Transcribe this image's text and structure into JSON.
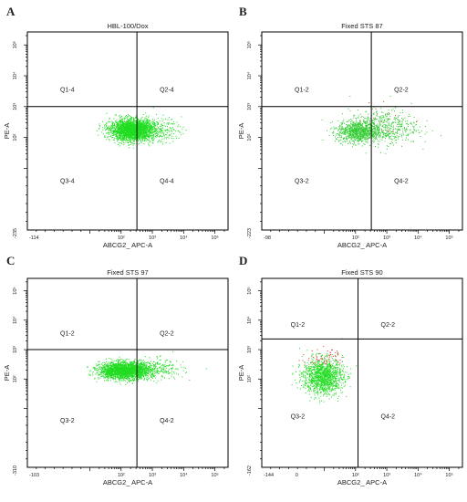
{
  "chart_data": [
    {
      "type": "scatter",
      "panel": "A",
      "title": "HBL-100/Dox",
      "xlabel": "ABCG2_ APC-A",
      "ylabel": "PE-A",
      "x_ticks": [
        "-114",
        "10²",
        "10³",
        "10⁴",
        "10⁵"
      ],
      "y_ticks": [
        "-235",
        "10²",
        "10³",
        "10⁴",
        "10⁵"
      ],
      "quadrants": [
        "Q1-4",
        "Q2-4",
        "Q3-4",
        "Q4-4"
      ],
      "gate": {
        "x": 320,
        "y": 1000
      },
      "xlim": [
        -114,
        262144
      ],
      "ylim": [
        -235,
        262144
      ],
      "x_scale": "biexponential",
      "y_scale": "biexponential",
      "populations": [
        {
          "color": "#22dd22",
          "count": 2600,
          "x_mean": 2.35,
          "x_sd": 0.35,
          "y_mean": 2.25,
          "y_sd": 0.17
        },
        {
          "color": "#22dd22",
          "count": 200,
          "x_mean": 3.2,
          "x_sd": 0.35,
          "y_mean": 2.25,
          "y_sd": 0.2
        }
      ]
    },
    {
      "type": "scatter",
      "panel": "B",
      "title": "Fixed STS 87",
      "xlabel": "ABCG2_ APC-A",
      "ylabel": "PE-A",
      "x_ticks": [
        "-98",
        "10²",
        "10³",
        "10⁴",
        "10⁵"
      ],
      "y_ticks": [
        "-223",
        "10²",
        "10³",
        "10⁴",
        "10⁵"
      ],
      "quadrants": [
        "Q1-2",
        "Q2-2",
        "Q3-2",
        "Q4-2"
      ],
      "gate": {
        "x": 320,
        "y": 1000
      },
      "xlim": [
        -98,
        262144
      ],
      "ylim": [
        -223,
        262144
      ],
      "x_scale": "biexponential",
      "y_scale": "biexponential",
      "populations": [
        {
          "color": "#33cc33",
          "count": 900,
          "x_mean": 2.1,
          "x_sd": 0.35,
          "y_mean": 2.2,
          "y_sd": 0.18
        },
        {
          "color": "#33cc33",
          "count": 500,
          "x_mean": 2.9,
          "x_sd": 0.55,
          "y_mean": 2.35,
          "y_sd": 0.28
        },
        {
          "color": "#dd3333",
          "count": 14,
          "x_mean": 2.9,
          "x_sd": 0.4,
          "y_mean": 2.6,
          "y_sd": 0.3
        }
      ]
    },
    {
      "type": "scatter",
      "panel": "C",
      "title": "Fixed STS 97",
      "xlabel": "ABCG2_ APC-A",
      "ylabel": "PE-A",
      "x_ticks": [
        "-103",
        "10²",
        "10³",
        "10⁴",
        "10⁵"
      ],
      "y_ticks": [
        "-310",
        "10²",
        "10³",
        "10⁴",
        "10⁵"
      ],
      "quadrants": [
        "Q1-2",
        "Q2-2",
        "Q3-2",
        "Q4-2"
      ],
      "gate": {
        "x": 320,
        "y": 1000
      },
      "xlim": [
        -103,
        262144
      ],
      "ylim": [
        -310,
        262144
      ],
      "x_scale": "biexponential",
      "y_scale": "biexponential",
      "populations": [
        {
          "color": "#22dd22",
          "count": 2300,
          "x_mean": 2.1,
          "x_sd": 0.4,
          "y_mean": 2.3,
          "y_sd": 0.14
        },
        {
          "color": "#22dd22",
          "count": 250,
          "x_mean": 3.1,
          "x_sd": 0.45,
          "y_mean": 2.35,
          "y_sd": 0.18
        }
      ]
    },
    {
      "type": "scatter",
      "panel": "D",
      "title": "Fixed STS 90",
      "xlabel": "ABCG2_ APC-A",
      "ylabel": "PE-A",
      "x_ticks": [
        "-144",
        "0",
        "10²",
        "10³",
        "10⁴",
        "10⁵"
      ],
      "y_ticks": [
        "-162",
        "10²",
        "10³",
        "10⁴",
        "10⁵"
      ],
      "quadrants": [
        "Q1-2",
        "Q2-2",
        "Q3-2",
        "Q4-2"
      ],
      "gate": {
        "x": 120,
        "y": 2300
      },
      "xlim": [
        -144,
        262144
      ],
      "ylim": [
        -162,
        262144
      ],
      "x_scale": "biexponential",
      "y_scale": "biexponential",
      "populations": [
        {
          "color": "#22dd22",
          "count": 1300,
          "x_mean": 0.95,
          "x_sd": 0.32,
          "y_mean": 2.1,
          "y_sd": 0.3
        },
        {
          "color": "#dd3333",
          "count": 60,
          "x_mean": 1.0,
          "x_sd": 0.3,
          "y_mean": 2.75,
          "y_sd": 0.15
        }
      ]
    }
  ]
}
